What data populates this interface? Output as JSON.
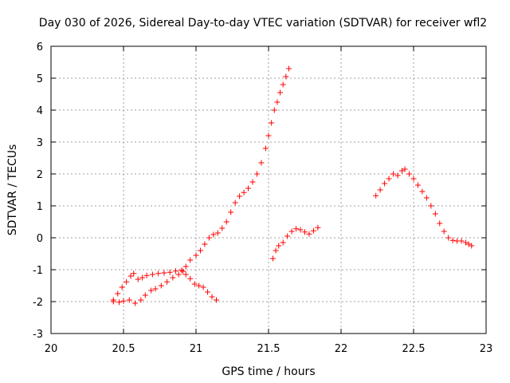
{
  "chart_data": {
    "type": "scatter",
    "title": "Day 030 of 2026, Sidereal Day-to-day VTEC variation (SDTVAR) for receiver wfl2",
    "xlabel": "GPS time / hours",
    "ylabel": "SDTVAR / TECUs",
    "xlim": [
      20,
      23
    ],
    "ylim": [
      -3,
      6
    ],
    "xticks": [
      20,
      20.5,
      21,
      21.5,
      22,
      22.5,
      23
    ],
    "xtick_labels": [
      "20",
      "20.5",
      "21",
      "21.5",
      "22",
      "22.5",
      "23"
    ],
    "yticks": [
      -3,
      -2,
      -1,
      0,
      1,
      2,
      3,
      4,
      5,
      6
    ],
    "ytick_labels": [
      "-3",
      "-2",
      "-1",
      "0",
      "1",
      "2",
      "3",
      "4",
      "5",
      "6"
    ],
    "grid": true,
    "marker": "+",
    "color": "#ff0000",
    "series": [
      {
        "name": "track-a",
        "points": [
          [
            20.43,
            -1.95
          ],
          [
            20.46,
            -1.75
          ],
          [
            20.49,
            -1.55
          ],
          [
            20.52,
            -1.38
          ],
          [
            20.55,
            -1.2
          ],
          [
            20.57,
            -1.12
          ],
          [
            20.6,
            -1.3
          ],
          [
            20.63,
            -1.25
          ],
          [
            20.66,
            -1.18
          ],
          [
            20.7,
            -1.15
          ],
          [
            20.74,
            -1.12
          ],
          [
            20.78,
            -1.1
          ],
          [
            20.82,
            -1.08
          ],
          [
            20.86,
            -1.04
          ],
          [
            20.9,
            -1.02
          ],
          [
            20.93,
            -1.15
          ],
          [
            20.96,
            -1.28
          ],
          [
            20.99,
            -1.45
          ],
          [
            21.02,
            -1.5
          ],
          [
            21.05,
            -1.55
          ],
          [
            21.08,
            -1.7
          ],
          [
            21.11,
            -1.85
          ],
          [
            21.14,
            -1.95
          ]
        ]
      },
      {
        "name": "track-b",
        "points": [
          [
            20.43,
            -2.0
          ],
          [
            20.47,
            -2.02
          ],
          [
            20.5,
            -1.98
          ],
          [
            20.54,
            -1.95
          ],
          [
            20.58,
            -2.05
          ],
          [
            20.62,
            -1.95
          ],
          [
            20.65,
            -1.8
          ],
          [
            20.69,
            -1.65
          ],
          [
            20.72,
            -1.6
          ],
          [
            20.76,
            -1.5
          ],
          [
            20.8,
            -1.38
          ],
          [
            20.84,
            -1.25
          ],
          [
            20.88,
            -1.15
          ],
          [
            20.91,
            -1.05
          ],
          [
            20.93,
            -0.9
          ],
          [
            20.96,
            -0.7
          ],
          [
            21.0,
            -0.55
          ],
          [
            21.03,
            -0.4
          ],
          [
            21.06,
            -0.2
          ],
          [
            21.09,
            0.0
          ],
          [
            21.12,
            0.1
          ],
          [
            21.15,
            0.15
          ],
          [
            21.18,
            0.3
          ],
          [
            21.21,
            0.5
          ],
          [
            21.24,
            0.8
          ],
          [
            21.27,
            1.1
          ],
          [
            21.3,
            1.3
          ],
          [
            21.33,
            1.42
          ],
          [
            21.36,
            1.55
          ],
          [
            21.39,
            1.75
          ],
          [
            21.42,
            2.0
          ],
          [
            21.45,
            2.35
          ],
          [
            21.48,
            2.8
          ],
          [
            21.5,
            3.2
          ],
          [
            21.52,
            3.6
          ],
          [
            21.54,
            4.0
          ],
          [
            21.56,
            4.25
          ],
          [
            21.58,
            4.55
          ],
          [
            21.6,
            4.8
          ],
          [
            21.62,
            5.05
          ],
          [
            21.64,
            5.3
          ]
        ]
      },
      {
        "name": "track-c",
        "points": [
          [
            21.53,
            -0.65
          ],
          [
            21.55,
            -0.4
          ],
          [
            21.57,
            -0.25
          ],
          [
            21.6,
            -0.15
          ],
          [
            21.63,
            0.05
          ],
          [
            21.66,
            0.2
          ],
          [
            21.69,
            0.28
          ],
          [
            21.72,
            0.25
          ],
          [
            21.75,
            0.18
          ],
          [
            21.78,
            0.12
          ],
          [
            21.81,
            0.22
          ],
          [
            21.84,
            0.32
          ]
        ]
      },
      {
        "name": "track-d",
        "points": [
          [
            22.24,
            1.32
          ],
          [
            22.27,
            1.5
          ],
          [
            22.3,
            1.7
          ],
          [
            22.33,
            1.85
          ],
          [
            22.36,
            2.0
          ],
          [
            22.39,
            1.95
          ],
          [
            22.42,
            2.1
          ],
          [
            22.44,
            2.15
          ],
          [
            22.47,
            2.0
          ],
          [
            22.5,
            1.85
          ],
          [
            22.53,
            1.65
          ],
          [
            22.56,
            1.45
          ],
          [
            22.59,
            1.25
          ],
          [
            22.62,
            1.0
          ],
          [
            22.65,
            0.75
          ],
          [
            22.68,
            0.45
          ],
          [
            22.71,
            0.2
          ],
          [
            22.74,
            0.0
          ],
          [
            22.77,
            -0.08
          ],
          [
            22.8,
            -0.1
          ],
          [
            22.83,
            -0.1
          ],
          [
            22.86,
            -0.15
          ],
          [
            22.88,
            -0.2
          ],
          [
            22.9,
            -0.25
          ]
        ]
      }
    ]
  }
}
